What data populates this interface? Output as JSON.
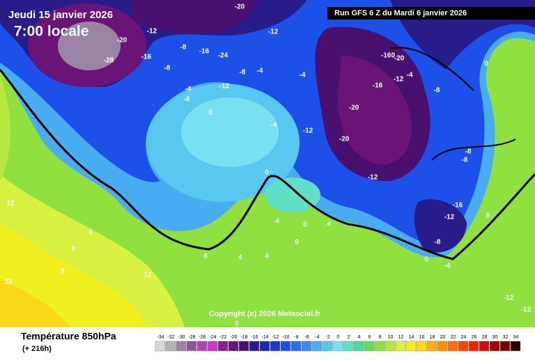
{
  "header": {
    "date": "Jeudi 15 janvier 2026",
    "time": "7:00 locale",
    "run": "Run GFS 6 Z du Mardi 6 janvier 2026"
  },
  "copyright": "Copyright (c) 2026 Meteociel.fr",
  "footer": {
    "title": "Température 850hPa",
    "lead": "(+ 216h)"
  },
  "legend": {
    "values": [
      -34,
      -32,
      -30,
      -28,
      -26,
      -24,
      -22,
      -20,
      -18,
      -16,
      -14,
      -12,
      -10,
      -8,
      -6,
      -4,
      -2,
      0,
      2,
      4,
      6,
      8,
      10,
      12,
      14,
      16,
      18,
      20,
      22,
      24,
      26,
      28,
      30,
      32,
      34
    ],
    "colors": [
      "#d8d8d8",
      "#b4b4b4",
      "#9a84a4",
      "#8c5a94",
      "#b048b0",
      "#c838c0",
      "#8a2090",
      "#6a1478",
      "#4a1070",
      "#281c88",
      "#1a2ab0",
      "#1838d0",
      "#1c50e8",
      "#2a6cf0",
      "#3a8cf0",
      "#48acf0",
      "#58c8f0",
      "#78e0f0",
      "#60e0c8",
      "#50d898",
      "#68d860",
      "#90e040",
      "#b8e840",
      "#d8f040",
      "#f0f020",
      "#f8d818",
      "#f8b010",
      "#f89008",
      "#f87008",
      "#f04808",
      "#e82808",
      "#c81010",
      "#a00808",
      "#700808",
      "#300000"
    ]
  },
  "map_labels": [
    "-28",
    "-20",
    "-12",
    "-16",
    "-8",
    "-24",
    "-20",
    "-12",
    "-8",
    "-16",
    "-4",
    "-8",
    "-12",
    "0",
    "-4",
    "-8",
    "-4",
    "-12",
    "-160",
    "-20",
    "-4",
    "-16",
    "-12",
    "-8",
    "-20",
    "-20",
    "-12",
    "-8",
    "-8",
    "0",
    "-16",
    "-12",
    "-8",
    "-4",
    "0",
    "0",
    "4",
    "4",
    "8",
    "4",
    "0",
    "8",
    "8",
    "12",
    "8",
    "12",
    "4",
    "0",
    "-4",
    "12",
    "-12",
    "-12",
    "0",
    "8"
  ]
}
